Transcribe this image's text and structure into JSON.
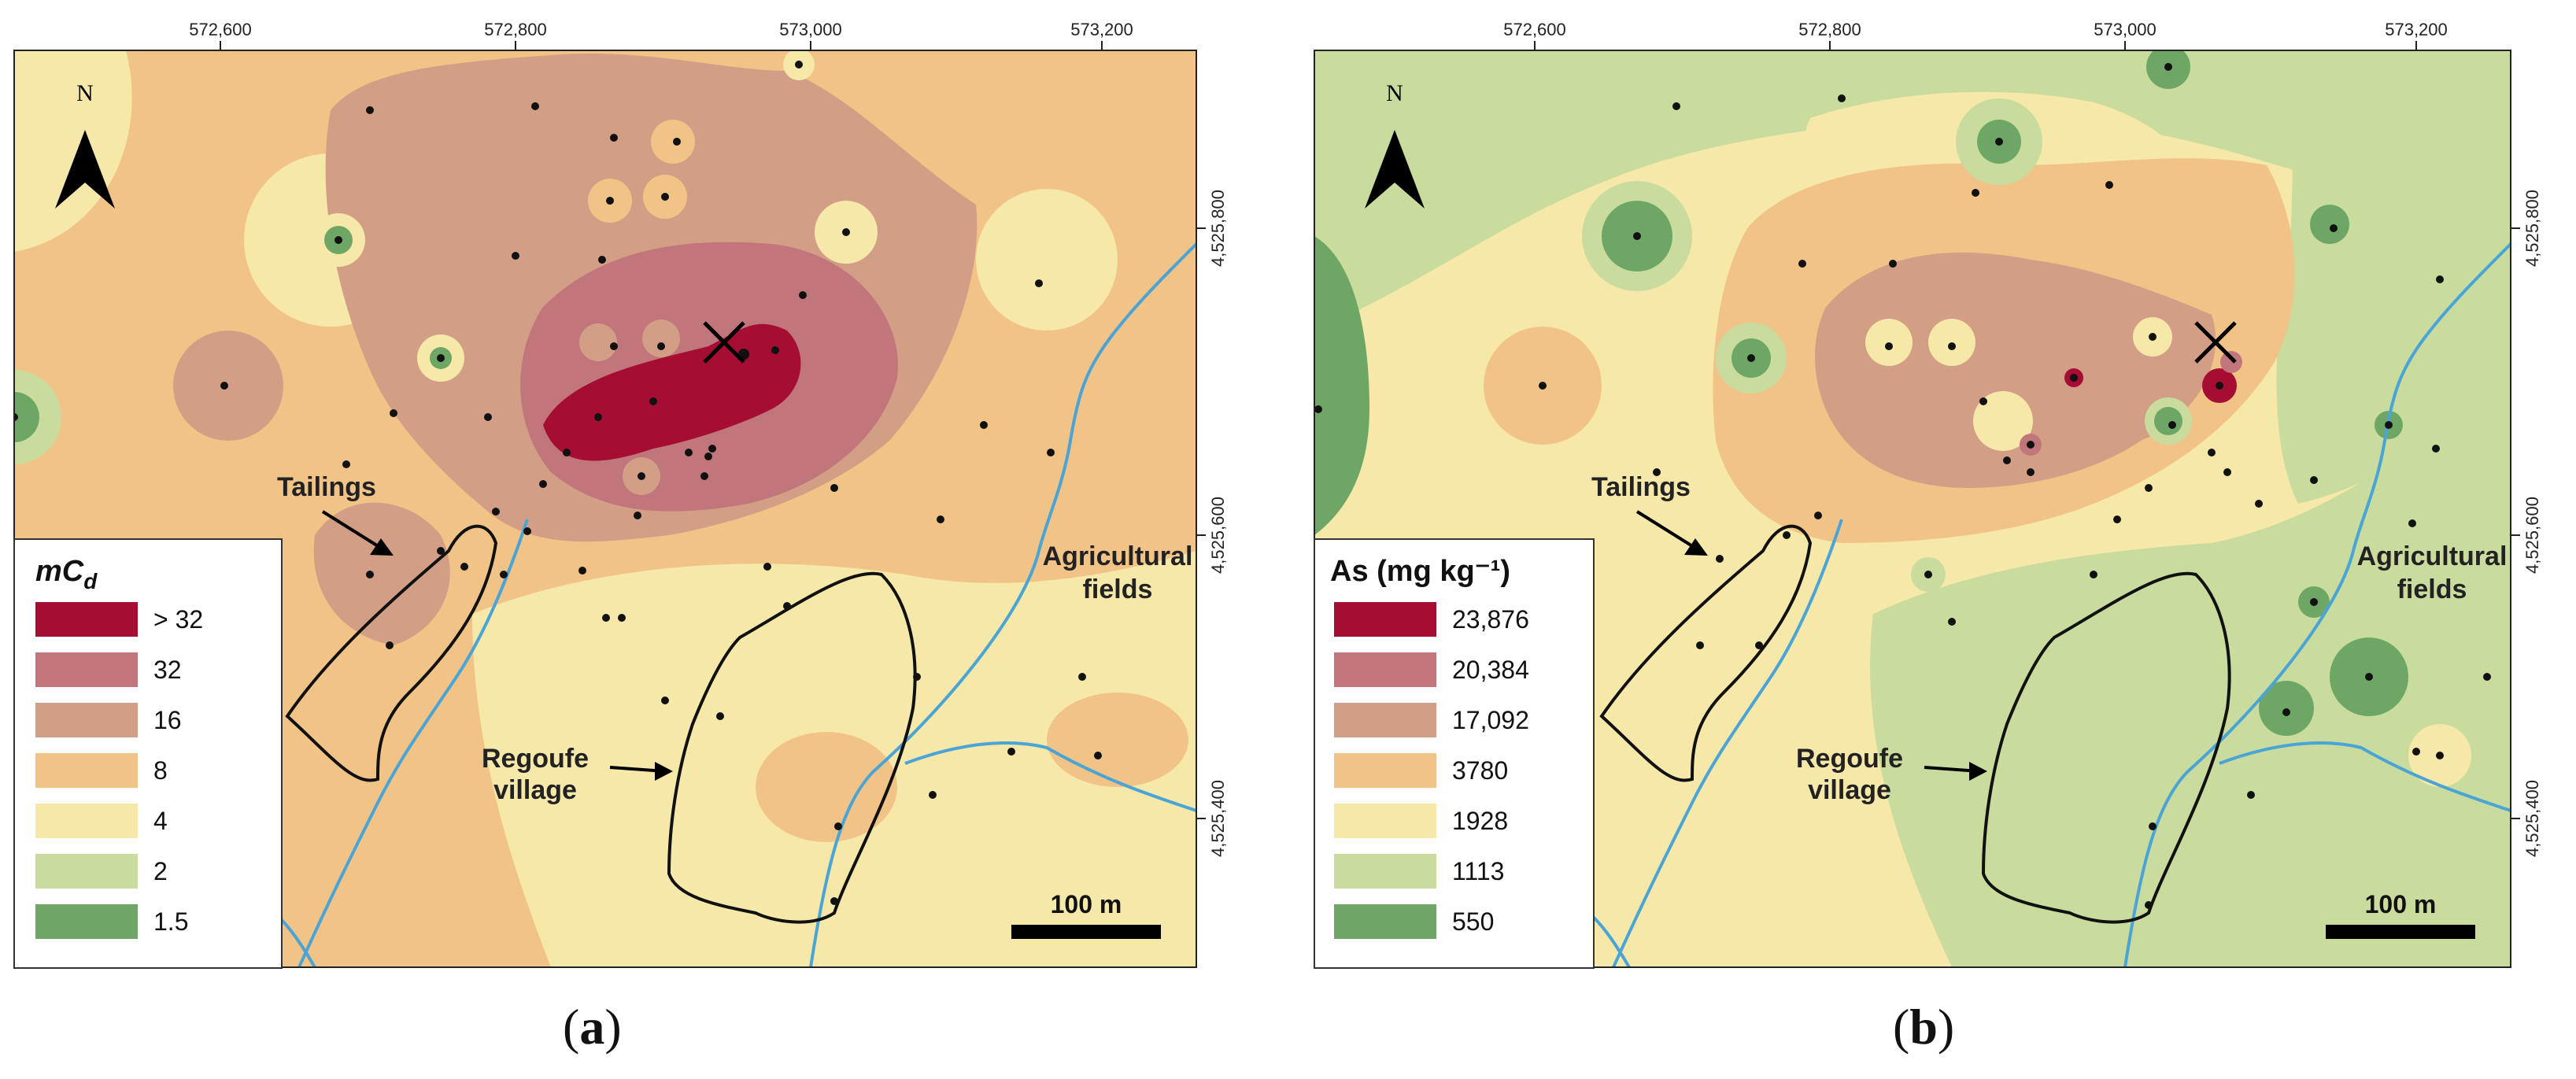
{
  "panels": [
    {
      "caption_open": "(",
      "caption_letter": "a",
      "caption_close": ")",
      "legend_title": "mC",
      "legend_title_sub": "d",
      "legend": [
        {
          "label": "> 32",
          "color": "#a50d32"
        },
        {
          "label": "32",
          "color": "#c0767b"
        },
        {
          "label": "16",
          "color": "#d39e86"
        },
        {
          "label": "8",
          "color": "#f1c387"
        },
        {
          "label": "4",
          "color": "#f6e8a8"
        },
        {
          "label": "2",
          "color": "#c9dc9e"
        },
        {
          "label": "1.5",
          "color": "#6ea765"
        }
      ]
    },
    {
      "caption_open": "(",
      "caption_letter": "b",
      "caption_close": ")",
      "legend_title": "As (mg kg⁻¹)",
      "legend_title_sub": "",
      "legend": [
        {
          "label": "23,876",
          "color": "#a50d32"
        },
        {
          "label": "20,384",
          "color": "#c0767b"
        },
        {
          "label": "17,092",
          "color": "#d39e86"
        },
        {
          "label": "3780",
          "color": "#f1c387"
        },
        {
          "label": "1928",
          "color": "#f6e8a8"
        },
        {
          "label": "1113",
          "color": "#c9dc9e"
        },
        {
          "label": "550",
          "color": "#6ea765"
        }
      ]
    }
  ],
  "x_ticks": [
    "572,600",
    "572,800",
    "573,000",
    "573,200"
  ],
  "y_ticks": [
    "4,525,800",
    "4,525,600",
    "4,525,400"
  ],
  "labels": {
    "tailings": "Tailings",
    "village_line1": "Regoufe",
    "village_line2": "village",
    "fields_line1": "Agricultural",
    "fields_line2": "fields",
    "north": "N",
    "scale": "100 m"
  },
  "colors": {
    "river": "#4aa5d6",
    "outline": "#111111"
  }
}
